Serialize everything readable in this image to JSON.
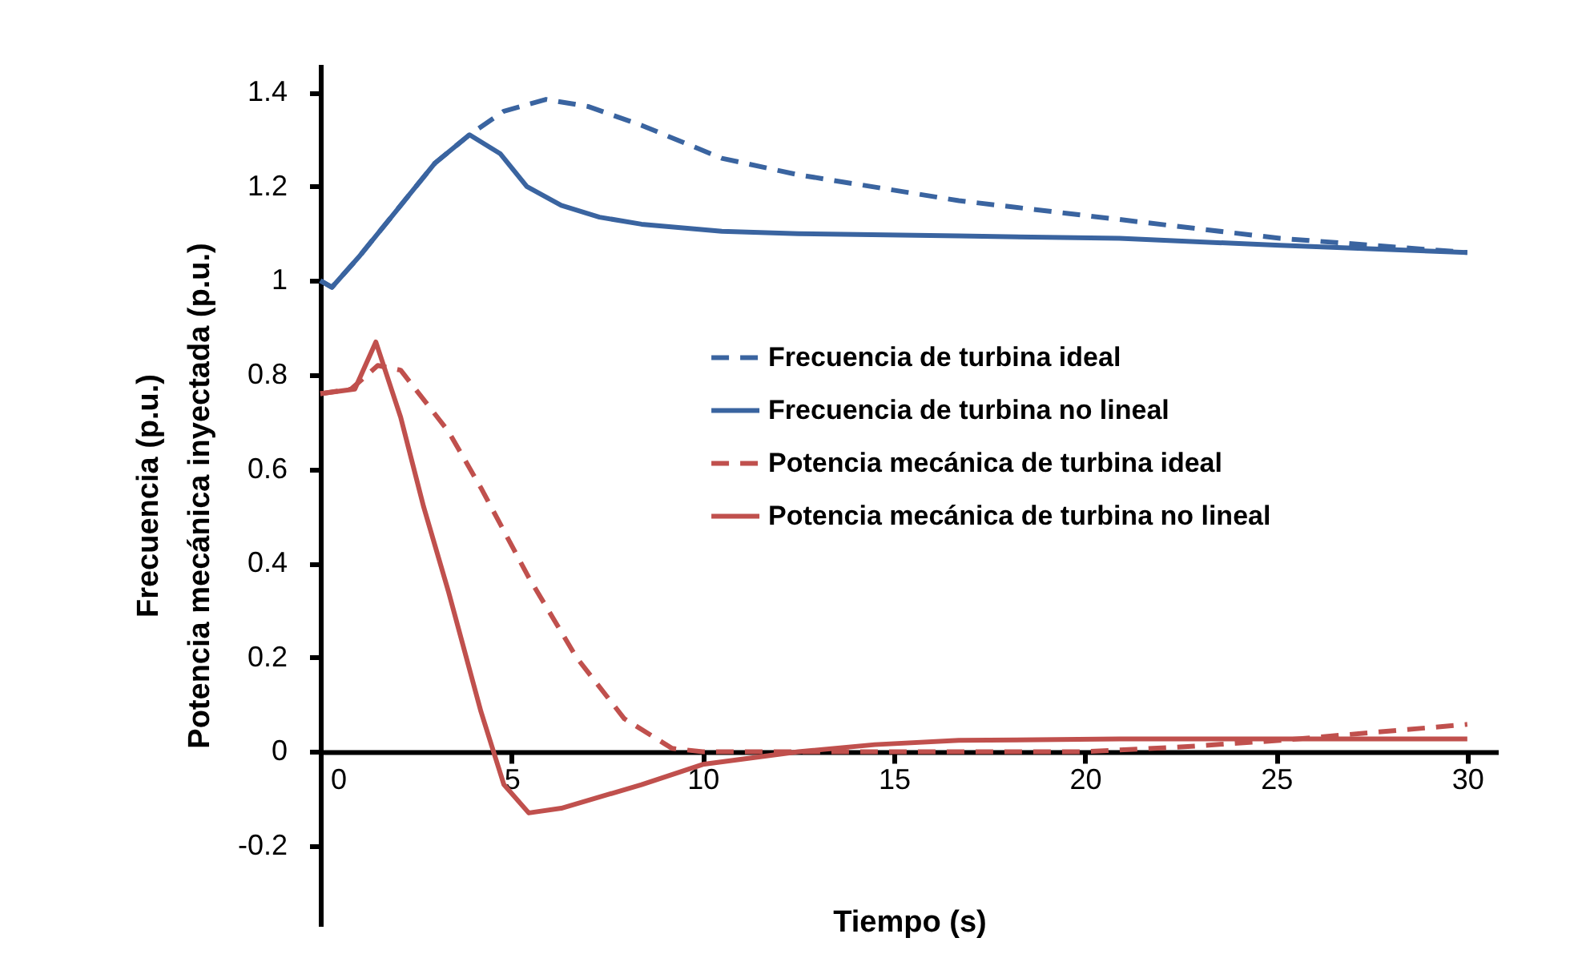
{
  "chart_data": {
    "type": "line",
    "xlabel": "Tiempo (s)",
    "ylabel": "Frecuencia (p.u.)\nPotencia mecánica  inyectada (p.u.)",
    "xlim": [
      0,
      30.8
    ],
    "ylim": [
      -0.37,
      1.46
    ],
    "xticks": [
      0,
      5,
      10,
      15,
      20,
      25,
      30
    ],
    "yticks": [
      -0.2,
      0,
      0.2,
      0.4,
      0.6,
      0.8,
      1,
      1.2,
      1.4
    ],
    "grid": false,
    "legend": "right",
    "marker": "none",
    "series": [
      {
        "name": "Frecuencia de turbina ideal",
        "color": "#3a64a0",
        "line_style": "dashed",
        "x": [
          0,
          0.3,
          1,
          2,
          3,
          3.9,
          4.8,
          5.9,
          7,
          8.4,
          10.5,
          12.5,
          16.7,
          20.9,
          25.1,
          30
        ],
        "values": [
          1.0,
          0.986,
          1.05,
          1.15,
          1.25,
          1.31,
          1.36,
          1.385,
          1.37,
          1.33,
          1.26,
          1.225,
          1.17,
          1.13,
          1.09,
          1.06
        ]
      },
      {
        "name": "Frecuencia de turbina no lineal",
        "color": "#3a64a0",
        "line_style": "solid",
        "x": [
          0,
          0.3,
          1,
          2,
          3,
          3.9,
          4.7,
          5.4,
          6.3,
          7.3,
          8.4,
          10.5,
          12.5,
          16.7,
          20.9,
          25.1,
          30
        ],
        "values": [
          1.0,
          0.986,
          1.05,
          1.15,
          1.25,
          1.31,
          1.27,
          1.2,
          1.16,
          1.135,
          1.12,
          1.105,
          1.1,
          1.095,
          1.09,
          1.075,
          1.06
        ]
      },
      {
        "name": "Potencia mecánica de turbina ideal",
        "color": "#c0504d",
        "line_style": "dashed",
        "x": [
          0,
          0.8,
          1.5,
          2.1,
          3.35,
          4.2,
          5.45,
          6.7,
          7.95,
          9.2,
          10,
          15,
          20,
          22.5,
          25.1,
          30
        ],
        "values": [
          0.76,
          0.77,
          0.82,
          0.81,
          0.68,
          0.56,
          0.37,
          0.2,
          0.07,
          0.007,
          0,
          0,
          0,
          0.01,
          0.024,
          0.058
        ]
      },
      {
        "name": "Potencia mecánica de turbina no lineal",
        "color": "#c0504d",
        "line_style": "solid",
        "x": [
          0,
          0.9,
          1.45,
          2.1,
          2.7,
          3.35,
          4.2,
          4.8,
          5.45,
          6.3,
          8.4,
          10,
          12.5,
          14.5,
          16.7,
          20.9,
          25.1,
          30
        ],
        "values": [
          0.76,
          0.77,
          0.87,
          0.71,
          0.52,
          0.34,
          0.085,
          -0.07,
          -0.13,
          -0.12,
          -0.07,
          -0.027,
          0,
          0.015,
          0.024,
          0.027,
          0.027,
          0.027
        ]
      }
    ]
  }
}
